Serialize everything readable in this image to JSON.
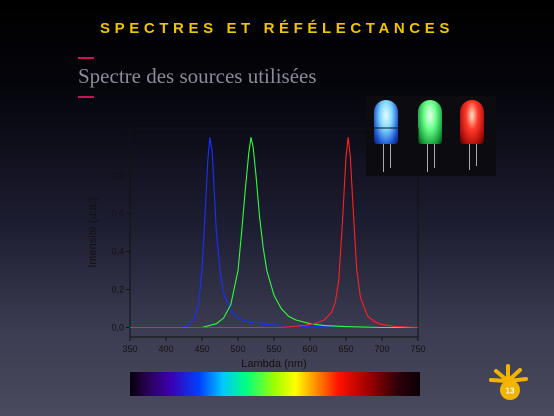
{
  "slide": {
    "header_title": "SPECTRES ET RÉFÉLECTANCES",
    "subtitle": "Spectre des sources utilisées",
    "page_number": "13",
    "accent_color": "#c8145a",
    "title_color": "#f2c400",
    "logo_icon": "sun-icon"
  },
  "photo": {
    "alt_description_icon": "led-photo",
    "led_colors": [
      "#7fd8ff",
      "#6cff8c",
      "#ff3b2a"
    ]
  },
  "chart_data": {
    "type": "line",
    "xlabel": "Lambda (nm)",
    "ylabel": "Intensité (u.a.)",
    "xlim": [
      350,
      750
    ],
    "ylim": [
      -0.05,
      1.05
    ],
    "xticks": [
      350,
      400,
      450,
      500,
      550,
      600,
      650,
      700,
      750
    ],
    "yticks": [
      0.0,
      0.2,
      0.4,
      0.6,
      0.8
    ],
    "ytick_labels": [
      "0,0",
      "0,2",
      "0,4",
      "0,6",
      "0,8"
    ],
    "series": [
      {
        "color": "#1a2fff",
        "x": [
          400,
          420,
          430,
          440,
          445,
          450,
          455,
          458,
          461,
          464,
          467,
          470,
          475,
          480,
          490,
          500,
          510,
          520,
          540,
          560,
          600,
          650,
          700,
          750
        ],
        "y": [
          0.0,
          0.0,
          0.01,
          0.05,
          0.12,
          0.3,
          0.65,
          0.88,
          1.0,
          0.93,
          0.72,
          0.5,
          0.3,
          0.18,
          0.09,
          0.05,
          0.035,
          0.025,
          0.015,
          0.01,
          0.005,
          0.003,
          0.0,
          0.0
        ]
      },
      {
        "color": "#2cff3a",
        "x": [
          450,
          470,
          480,
          490,
          500,
          505,
          510,
          515,
          518,
          521,
          525,
          530,
          535,
          540,
          550,
          560,
          570,
          580,
          600,
          620,
          650,
          700,
          750
        ],
        "y": [
          0.0,
          0.02,
          0.05,
          0.12,
          0.3,
          0.5,
          0.72,
          0.92,
          1.0,
          0.95,
          0.8,
          0.58,
          0.42,
          0.3,
          0.17,
          0.1,
          0.06,
          0.04,
          0.02,
          0.01,
          0.005,
          0.0,
          0.0
        ]
      },
      {
        "color": "#ff2020",
        "x": [
          350,
          560,
          590,
          600,
          610,
          620,
          630,
          635,
          640,
          645,
          650,
          653,
          656,
          660,
          665,
          670,
          680,
          690,
          700,
          720,
          750
        ],
        "y": [
          0.0,
          0.0,
          0.01,
          0.015,
          0.025,
          0.04,
          0.08,
          0.13,
          0.25,
          0.55,
          0.9,
          1.0,
          0.9,
          0.62,
          0.3,
          0.16,
          0.06,
          0.03,
          0.015,
          0.005,
          0.0
        ]
      }
    ],
    "spectrum_bar": true
  }
}
